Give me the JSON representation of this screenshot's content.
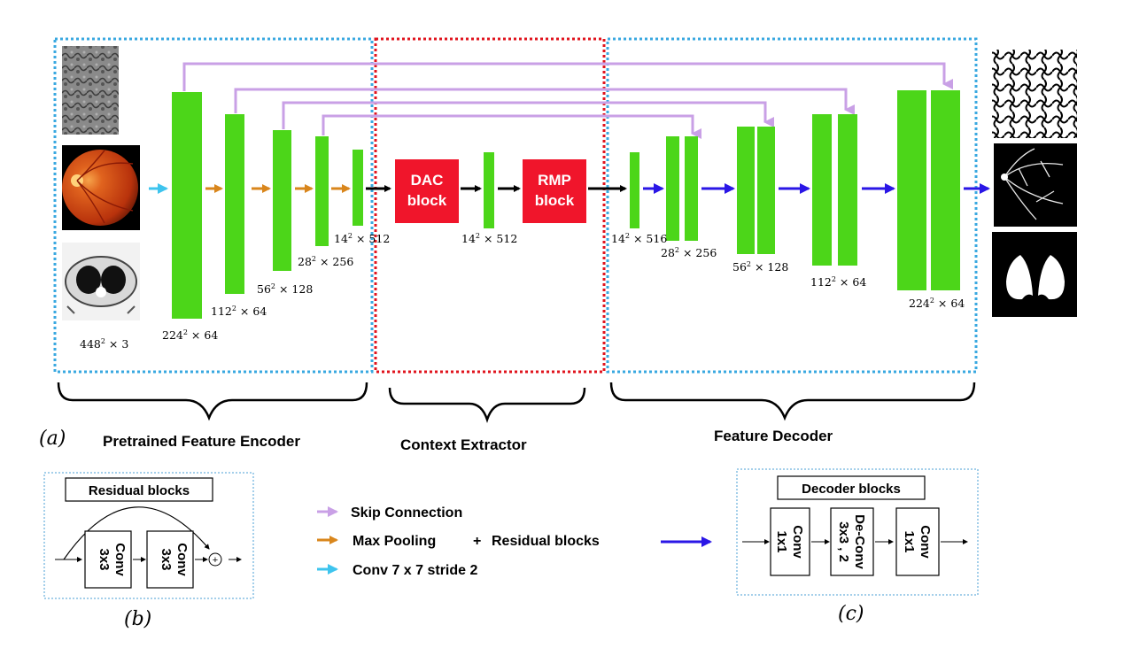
{
  "colors": {
    "block_green": "#4cd619",
    "block_red": "#f0152b",
    "skip": "#c9a0e6",
    "maxpool": "#d9861c",
    "conv": "#3ec4ee",
    "decoder": "#2a16e6",
    "encoder_border": "#39a8e0",
    "context_border": "#e0141e",
    "legend_border": "#4a9fd6"
  },
  "sections": {
    "encoder": "Pretrained Feature Encoder",
    "context": "Context Extractor",
    "decoder": "Feature Decoder"
  },
  "panel_labels": {
    "a": "(a)",
    "b": "(b)",
    "c": "(c)"
  },
  "encoder_dims": [
    {
      "base": "448",
      "exp": "2",
      "rest": " × 3"
    },
    {
      "base": "224",
      "exp": "2",
      "rest": " × 64"
    },
    {
      "base": "112",
      "exp": "2",
      "rest": " × 64"
    },
    {
      "base": "56",
      "exp": "2",
      "rest": " × 128"
    },
    {
      "base": "28",
      "exp": "2",
      "rest": " × 256"
    },
    {
      "base": "14",
      "exp": "2",
      "rest": " × 512"
    }
  ],
  "context_dims": [
    {
      "base": "14",
      "exp": "2",
      "rest": " × 512"
    }
  ],
  "decoder_dims": [
    {
      "base": "14",
      "exp": "2",
      "rest": " × 516"
    },
    {
      "base": "28",
      "exp": "2",
      "rest": " × 256"
    },
    {
      "base": "56",
      "exp": "2",
      "rest": " × 128"
    },
    {
      "base": "112",
      "exp": "2",
      "rest": " × 64"
    },
    {
      "base": "224",
      "exp": "2",
      "rest": " × 64"
    }
  ],
  "dac_block": [
    "DAC",
    "block"
  ],
  "rmp_block": [
    "RMP",
    "block"
  ],
  "legend": {
    "residual_title": "Residual blocks",
    "residual_conv": [
      "Conv",
      "3x3"
    ],
    "skip": "Skip Connection",
    "maxpool": "Max Pooling",
    "plus": "+",
    "residual": "Residual blocks",
    "conv": "Conv 7 x 7 stride 2",
    "decoder_title": "Decoder blocks",
    "decoder_conv1": [
      "Conv",
      "1x1"
    ],
    "decoder_deconv": [
      "De-Conv",
      "3x3 , 2"
    ],
    "decoder_conv2": [
      "Conv",
      "1x1"
    ],
    "sum_symbol": "+"
  },
  "images": [
    "electron-microscopy-input",
    "retinal-fundus-input",
    "lung-ct-input",
    "membrane-segmentation-output",
    "vessel-segmentation-output",
    "lung-segmentation-output"
  ]
}
